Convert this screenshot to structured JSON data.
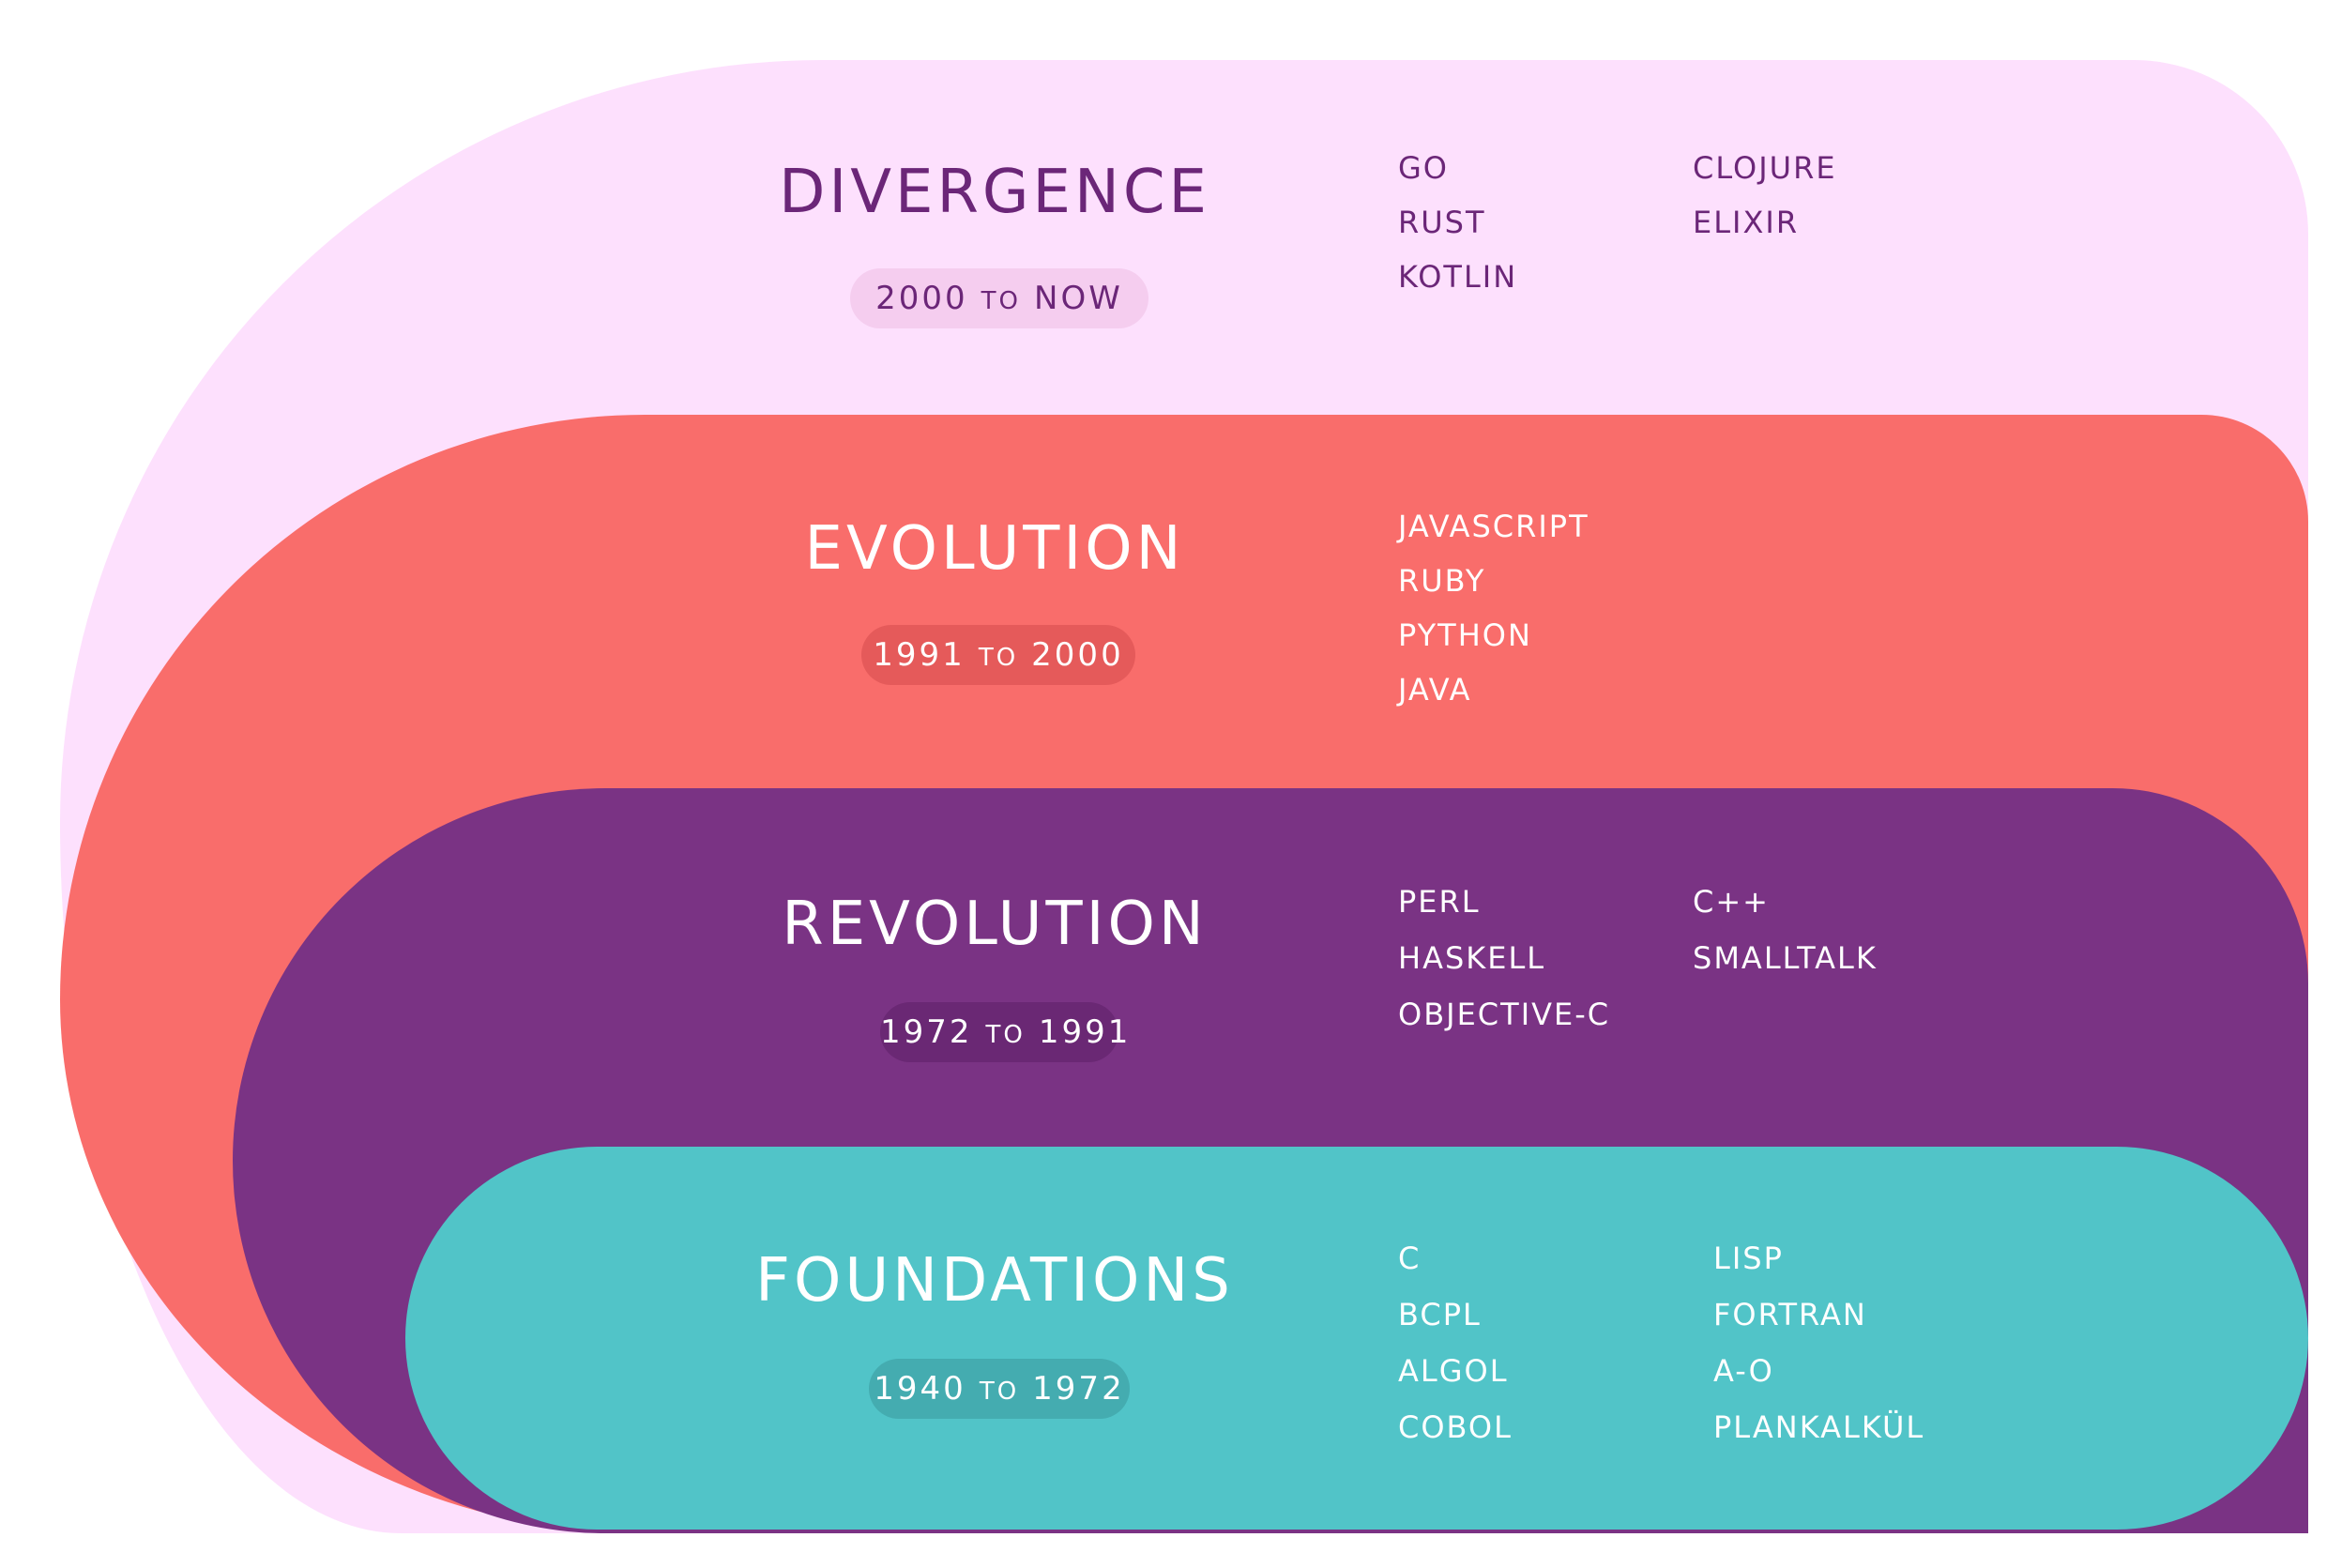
{
  "colors": {
    "divergence_bg": "#fde0fd",
    "divergence_text": "#6b2678",
    "divergence_pill": "#f5cdef",
    "evolution_bg": "#f96d6b",
    "evolution_text": "#ffffff",
    "evolution_pill": "#e55a5a",
    "revolution_bg": "#7a3384",
    "revolution_text": "#ffffff",
    "revolution_pill": "#6a2874",
    "foundations_bg": "#51c4c8",
    "foundations_text": "#ffffff",
    "foundations_pill": "#44acb0"
  },
  "eras": [
    {
      "key": "divergence",
      "title": "DIVERGENCE",
      "from": "2000",
      "to_word": "TO",
      "until": "NOW",
      "languages_col1": [
        "GO",
        "RUST",
        "KOTLIN"
      ],
      "languages_col2": [
        "CLOJURE",
        "ELIXIR"
      ]
    },
    {
      "key": "evolution",
      "title": "EVOLUTION",
      "from": "1991",
      "to_word": "TO",
      "until": "2000",
      "languages_col1": [
        "JAVASCRIPT",
        "RUBY",
        "PYTHON",
        "JAVA"
      ],
      "languages_col2": []
    },
    {
      "key": "revolution",
      "title": "REVOLUTION",
      "from": "1972",
      "to_word": "TO",
      "until": "1991",
      "languages_col1": [
        "PERL",
        "HASKELL",
        "OBJECTIVE-C"
      ],
      "languages_col2": [
        "C++",
        "SMALLTALK"
      ]
    },
    {
      "key": "foundations",
      "title": "FOUNDATIONS",
      "from": "1940",
      "to_word": "TO",
      "until": "1972",
      "languages_col1": [
        "C",
        "BCPL",
        "ALGOL",
        "COBOL"
      ],
      "languages_col2": [
        "LISP",
        "FORTRAN",
        "A-O",
        "PLANKALKÜL"
      ]
    }
  ]
}
